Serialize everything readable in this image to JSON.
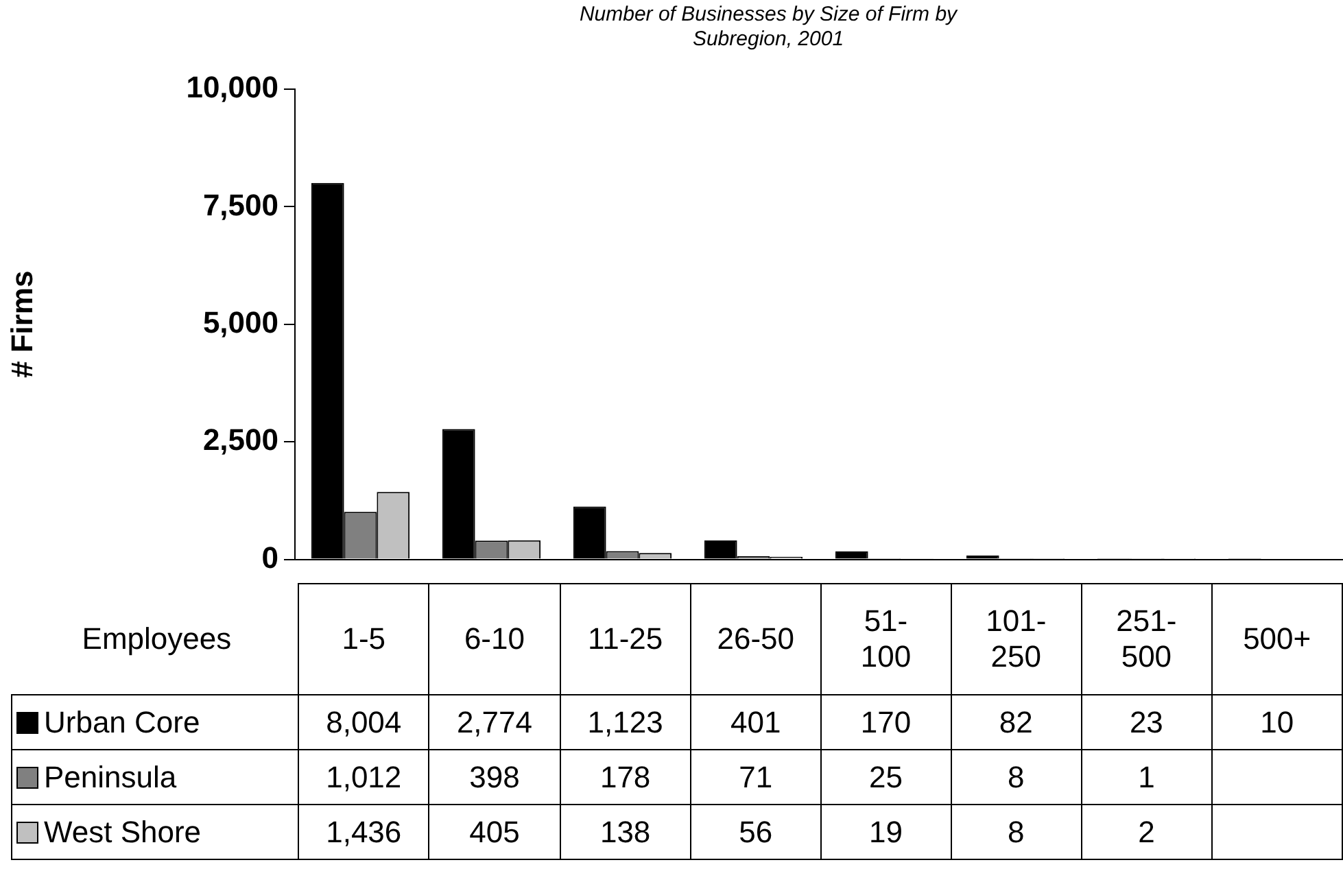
{
  "chart_data": {
    "type": "bar",
    "title": "Number of Businesses by Size of Firm by Subregion, 2001",
    "xlabel": "Employees",
    "ylabel": "# Firms",
    "categories": [
      "1-5",
      "6-10",
      "11-25",
      "26-50",
      "51-100",
      "101-250",
      "251-500",
      "500+"
    ],
    "series": [
      {
        "name": "Urban Core",
        "color": "#000000",
        "values": [
          8004,
          2774,
          1123,
          401,
          170,
          82,
          23,
          10
        ],
        "value_labels": [
          "8,004",
          "2,774",
          "1,123",
          "401",
          "170",
          "82",
          "23",
          "10"
        ]
      },
      {
        "name": "Peninsula",
        "color": "#808080",
        "values": [
          1012,
          398,
          178,
          71,
          25,
          8,
          1,
          null
        ],
        "value_labels": [
          "1,012",
          "398",
          "178",
          "71",
          "25",
          "8",
          "1",
          null
        ]
      },
      {
        "name": "West Shore",
        "color": "#c0c0c0",
        "values": [
          1436,
          405,
          138,
          56,
          19,
          8,
          2,
          null
        ],
        "value_labels": [
          "1,436",
          "405",
          "138",
          "56",
          "19",
          "8",
          "2",
          null
        ]
      }
    ],
    "ylim": [
      0,
      10000
    ],
    "yticks": [
      {
        "value": 0,
        "label": "0"
      },
      {
        "value": 2500,
        "label": "2,500"
      },
      {
        "value": 5000,
        "label": "5,000"
      },
      {
        "value": 7500,
        "label": "7,500"
      },
      {
        "value": 10000,
        "label": "10,000"
      }
    ],
    "grid": false,
    "legend": "bottom"
  }
}
